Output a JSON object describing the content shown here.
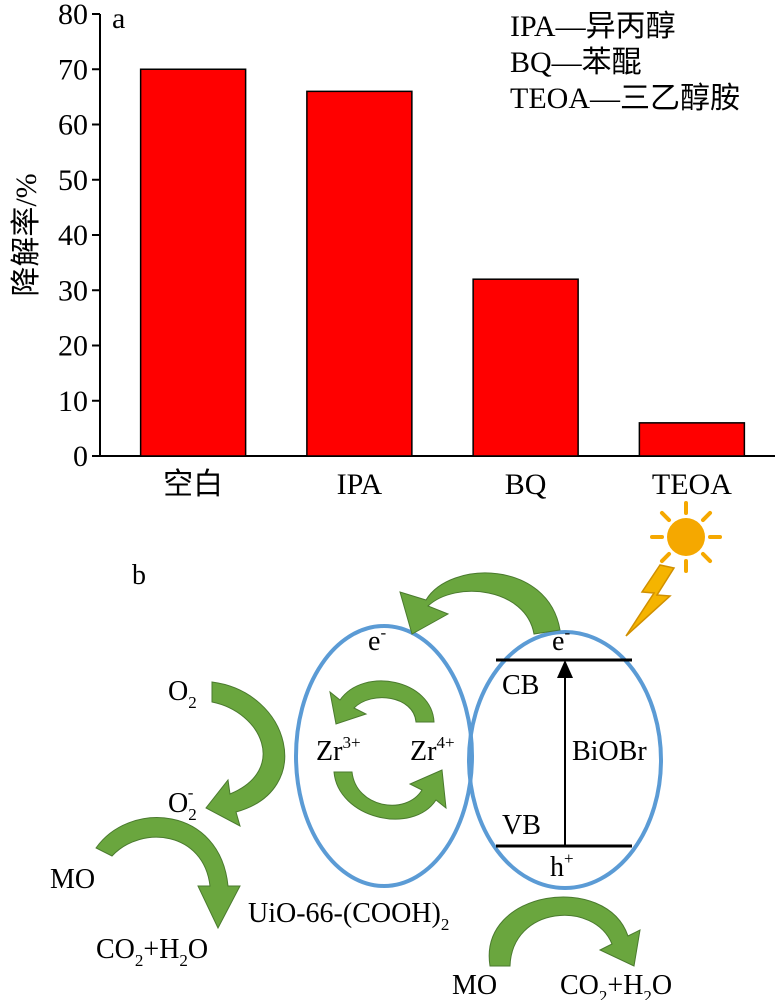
{
  "panel_a_label": "a",
  "panel_b_label": "b",
  "legend": [
    "IPA—异丙醇",
    "BQ—苯醌",
    "TEOA—三乙醇胺"
  ],
  "colors": {
    "bar": "#ff0000",
    "arrow_dark": "#4a7a2e",
    "arrow_light": "#7dbb45",
    "ellipse": "#5b9bd5",
    "sun": "#f5a800",
    "bolt": "#f5b400"
  },
  "chart_data": {
    "type": "bar",
    "categories": [
      "空白",
      "IPA",
      "BQ",
      "TEOA"
    ],
    "values": [
      70,
      66,
      32,
      6
    ],
    "xlabel": "",
    "ylabel": "降解率/%",
    "ylim": [
      0,
      80
    ],
    "yticks": [
      0,
      10,
      20,
      30,
      40,
      50,
      60,
      70,
      80
    ],
    "grid": false
  },
  "diagram": {
    "uio_name": "UiO-66-(COOH)",
    "uio_sub": "2",
    "uio_e": "e",
    "uio_e_sup": "-",
    "zr3": "Zr",
    "zr3_sup": "3+",
    "zr4": "Zr",
    "zr4_sup": "4+",
    "biobr": "BiOBr",
    "cb": "CB",
    "vb": "VB",
    "cb_e": "e",
    "cb_e_sup": "-",
    "vb_h": "h",
    "vb_h_sup": "+",
    "o2": "O",
    "o2_sub": "2",
    "o2m": "O",
    "o2m_sub": "2",
    "o2m_sup": "-",
    "mo_left": "MO",
    "mo_right": "MO",
    "co2_left_a": "CO",
    "co2_left_sub1": "2",
    "co2_left_b": "+H",
    "co2_left_sub2": "2",
    "co2_left_c": "O",
    "co2_right_a": "CO",
    "co2_right_sub1": "2",
    "co2_right_b": "+H",
    "co2_right_sub2": "2",
    "co2_right_c": "O"
  }
}
